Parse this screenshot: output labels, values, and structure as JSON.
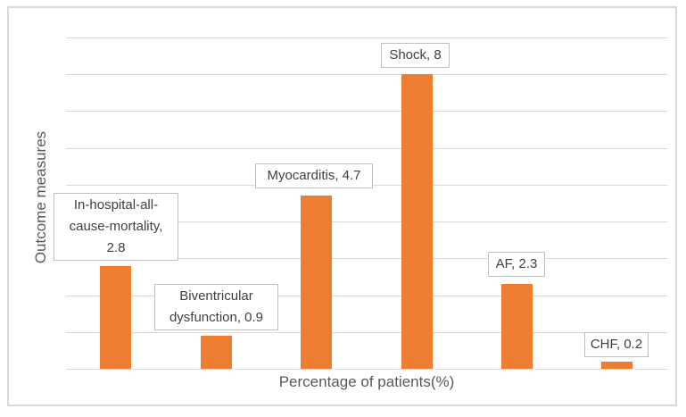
{
  "figure": {
    "background_color": "#FFFFFF",
    "border_color": "#D9D9D9"
  },
  "chart_data": {
    "type": "bar",
    "title": "",
    "categories": [
      "In-hospital-all-cause-mortality",
      "Biventricular dysfunction",
      "Myocarditis",
      "Shock",
      "AF",
      "CHF"
    ],
    "values": [
      2.8,
      0.9,
      4.7,
      8,
      2.3,
      0.2
    ],
    "xlabel": "Percentage of patients(%)",
    "ylabel": "Outcome measures",
    "ylim": [
      0,
      9
    ],
    "gridline_step": 1,
    "grid": "horizontal",
    "legend": "none",
    "bar_color": "#ED7D31",
    "gridline_color": "#D9D9D9",
    "label_box_border_color": "#BFBFBF",
    "label_text_color": "#404040",
    "axis_title_color": "#595959",
    "data_labels": [
      {
        "text": "In-hospital-all-\ncause-mortality,\n2.8"
      },
      {
        "text": "Biventricular\ndysfunction, 0.9"
      },
      {
        "text": "Myocarditis, 4.7"
      },
      {
        "text": "Shock, 8"
      },
      {
        "text": "AF, 2.3"
      },
      {
        "text": "CHF, 0.2"
      }
    ]
  }
}
